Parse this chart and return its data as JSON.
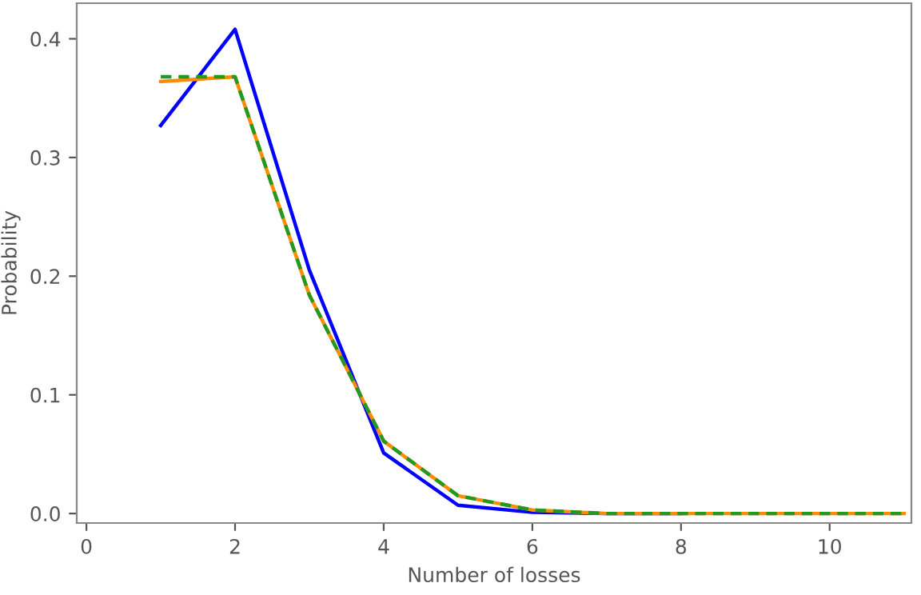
{
  "chart_data": {
    "type": "line",
    "xlabel": "Number of losses",
    "ylabel": "Probability",
    "x": [
      1,
      2,
      3,
      4,
      5,
      6,
      7,
      8,
      9,
      10,
      11
    ],
    "series": [
      {
        "color": "#0000ff",
        "values": [
          0.327,
          0.408,
          0.205,
          0.051,
          0.007,
          0.001,
          0,
          0,
          null,
          null,
          null
        ],
        "line_style": "solid"
      },
      {
        "color": "#ff8c00",
        "values": [
          0.364,
          0.368,
          0.184,
          0.061,
          0.015,
          0.003,
          0,
          0,
          0,
          0,
          0
        ],
        "line_style": "solid"
      },
      {
        "color": "#229922",
        "values": [
          0.368,
          0.368,
          0.184,
          0.061,
          0.015,
          0.003,
          0,
          0,
          0,
          0,
          0
        ],
        "line_style": "dashed"
      }
    ],
    "xlim": [
      -0.13,
      11.1
    ],
    "ylim": [
      -0.008,
      0.43
    ],
    "xticks": [
      0,
      2,
      4,
      6,
      8,
      10
    ],
    "yticks": [
      {
        "value": 0,
        "label": "0.0"
      },
      0.1,
      0.2,
      0.3,
      0.4
    ],
    "grid": false,
    "marker": "none"
  }
}
